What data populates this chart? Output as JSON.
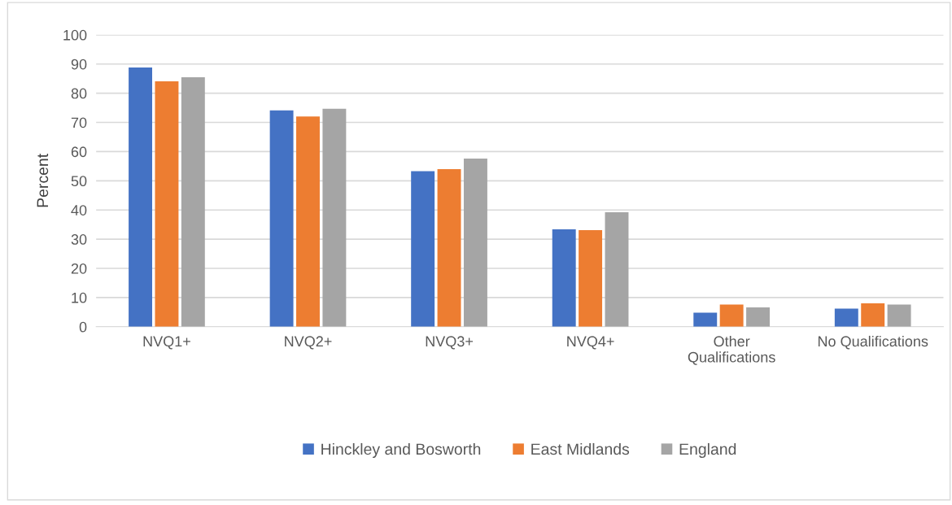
{
  "chart_data": {
    "type": "bar",
    "ylabel": "Percent",
    "categories": [
      "NVQ1+",
      "NVQ2+",
      "NVQ3+",
      "NVQ4+",
      "Other\nQualifications",
      "No Qualifications"
    ],
    "series": [
      {
        "name": "Hinckley and Bosworth",
        "color": "#4472c4",
        "values": [
          88.8,
          74.1,
          53.3,
          33.4,
          4.8,
          6.2
        ]
      },
      {
        "name": "East Midlands",
        "color": "#ed7d31",
        "values": [
          84.1,
          72.0,
          54.0,
          33.1,
          7.6,
          8.0
        ]
      },
      {
        "name": "England",
        "color": "#a5a5a5",
        "values": [
          85.5,
          74.7,
          57.6,
          39.2,
          6.6,
          7.6
        ]
      }
    ],
    "ylim": [
      0,
      100
    ],
    "yticks": [
      0,
      10,
      20,
      30,
      40,
      50,
      60,
      70,
      80,
      90,
      100
    ],
    "grid": "y",
    "legend": "bottom"
  }
}
